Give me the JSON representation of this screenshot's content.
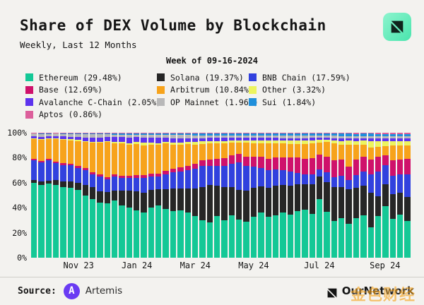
{
  "header": {
    "title": "Share of DEX Volume by Blockchain",
    "subtitle": "Weekly, Last 12 Months",
    "week_label": "Week of 09-16-2024"
  },
  "legend": {
    "columns": [
      [
        {
          "label": "Ethereum (29.48%)",
          "color": "#14C896"
        },
        {
          "label": "Base (12.69%)",
          "color": "#CF116B"
        },
        {
          "label": "Avalanche C-Chain (2.05%)",
          "color": "#5D33EE"
        },
        {
          "label": "Aptos (0.86%)",
          "color": "#DC5F9B"
        }
      ],
      [
        {
          "label": "Solana (19.37%)",
          "color": "#262626"
        },
        {
          "label": "Arbitrum (10.84%)",
          "color": "#F7A31B"
        },
        {
          "label": "OP Mainnet (1.96%)",
          "color": "#B8B8B8"
        }
      ],
      [
        {
          "label": "BNB Chain (17.59%)",
          "color": "#3141DE"
        },
        {
          "label": "Other (3.32%)",
          "color": "#ECF45F"
        },
        {
          "label": "Sui (1.84%)",
          "color": "#1F8FDB"
        }
      ]
    ]
  },
  "footer": {
    "source_label": "Source:",
    "source_logo_letter": "A",
    "source_name": "Artemis",
    "brand": "OurNetwork",
    "watermark": "金色财经"
  },
  "chart_data": {
    "type": "bar",
    "stacked": true,
    "normalized_to_100pct": true,
    "title": "Share of DEX Volume by Blockchain",
    "weeks": 52,
    "x_range_note": "weekly bars from late Sep 2023 to week of 09-16-2024",
    "y_ticks": [
      "0%",
      "20%",
      "40%",
      "60%",
      "80%",
      "100%"
    ],
    "ylim": [
      0,
      100
    ],
    "grid": false,
    "legend_position": "top",
    "x_ticks": [
      {
        "label": "Nov 23",
        "index": 6
      },
      {
        "label": "Jan 24",
        "index": 14
      },
      {
        "label": "Mar 24",
        "index": 22
      },
      {
        "label": "May 24",
        "index": 30
      },
      {
        "label": "Jul 24",
        "index": 39
      },
      {
        "label": "Sep 24",
        "index": 48
      }
    ],
    "series": [
      {
        "name": "Ethereum",
        "color": "#14C896",
        "latest_pct": 29.48,
        "values": [
          60,
          58,
          59.5,
          58,
          57,
          56,
          54,
          50,
          47,
          45,
          44,
          46,
          42,
          40,
          38,
          36,
          40,
          42,
          39,
          37,
          38,
          36,
          33,
          30,
          28,
          33,
          30,
          34,
          31,
          29,
          33,
          36,
          33,
          34,
          36,
          34,
          37,
          38,
          35,
          48,
          38,
          30,
          32,
          28,
          32,
          35,
          25,
          34,
          42,
          32,
          35,
          29.48
        ]
      },
      {
        "name": "Solana",
        "color": "#262626",
        "latest_pct": 19.37,
        "values": [
          2,
          3,
          2.5,
          4,
          4.5,
          5,
          6,
          8,
          10,
          9,
          9,
          8,
          12,
          14,
          15,
          16,
          14,
          13,
          16,
          18,
          17,
          19,
          22,
          26,
          30,
          24,
          26,
          22,
          24,
          25,
          23,
          21,
          23,
          24,
          22,
          23,
          21,
          20,
          24,
          18,
          25,
          28,
          25,
          28,
          25,
          24,
          28,
          16,
          18,
          20,
          18,
          19.37
        ]
      },
      {
        "name": "BNB Chain",
        "color": "#3141DE",
        "latest_pct": 17.59,
        "values": [
          16,
          15,
          16,
          14,
          13,
          13,
          12,
          12,
          10,
          12,
          10,
          11,
          10,
          10,
          11,
          12,
          11,
          10,
          12,
          13,
          14,
          15,
          16,
          17,
          15,
          16,
          17,
          19,
          22,
          20,
          17,
          15,
          14,
          13,
          12,
          11,
          9,
          8,
          8,
          6,
          8,
          8,
          9,
          8,
          10,
          12,
          15,
          20,
          15,
          15,
          15,
          17.59
        ]
      },
      {
        "name": "Base",
        "color": "#CF116B",
        "latest_pct": 12.69,
        "values": [
          1,
          1,
          1.2,
          1,
          1.5,
          1,
          1.5,
          1.5,
          1.5,
          1.5,
          2,
          2,
          2,
          2,
          2,
          2,
          2.5,
          2.5,
          2.5,
          3,
          3,
          3.5,
          4,
          4.5,
          5,
          5.5,
          6,
          6.5,
          7,
          7.5,
          8,
          9,
          9.5,
          10,
          10,
          11,
          12,
          12,
          13,
          12,
          13,
          14,
          13,
          11,
          13,
          12,
          12,
          12,
          8,
          13,
          12,
          12.69
        ]
      },
      {
        "name": "Arbitrum",
        "color": "#F7A31B",
        "latest_pct": 10.84,
        "values": [
          16,
          17,
          16,
          18,
          19,
          19,
          20,
          21,
          24,
          26,
          28,
          25,
          26,
          25,
          25,
          24,
          23,
          23,
          22,
          19,
          18,
          17,
          15,
          13,
          13,
          12,
          12,
          10,
          9,
          11,
          11,
          11,
          12,
          11,
          11,
          11,
          11,
          12,
          12,
          10,
          12,
          14,
          12,
          18,
          12,
          10,
          10,
          8,
          8,
          12,
          12,
          10.84
        ]
      },
      {
        "name": "Other",
        "color": "#ECF45F",
        "latest_pct": 3.32,
        "values": [
          0.6,
          0.6,
          0.6,
          0.6,
          0.6,
          0.7,
          0.7,
          0.7,
          0.8,
          0.8,
          0.8,
          0.9,
          1,
          1.2,
          1.5,
          2,
          1.5,
          1.5,
          1.5,
          1.8,
          2,
          2,
          2,
          2,
          2,
          2,
          2,
          2,
          2,
          2,
          2,
          2,
          2.5,
          2.5,
          2.5,
          2.5,
          2.5,
          2.5,
          2,
          2,
          2,
          2,
          3,
          3,
          3,
          3,
          5,
          5,
          4,
          3.5,
          3.5,
          3.32
        ]
      },
      {
        "name": "Avalanche C-Chain",
        "color": "#5D33EE",
        "latest_pct": 2.05,
        "values": [
          1.6,
          1.8,
          1.6,
          1.6,
          2,
          2.2,
          2.5,
          3,
          3.5,
          3.5,
          3.5,
          4,
          4,
          4.5,
          4,
          4,
          4,
          4,
          3,
          3.5,
          3.5,
          3,
          3,
          2.5,
          2.5,
          2.5,
          2.5,
          2,
          2,
          2,
          2,
          2,
          2,
          2,
          2,
          2,
          2,
          2,
          2,
          1.8,
          1.8,
          2,
          2.2,
          2,
          2,
          2,
          2.2,
          2,
          2,
          2,
          2,
          2.05
        ]
      },
      {
        "name": "OP Mainnet",
        "color": "#B8B8B8",
        "latest_pct": 1.96,
        "values": [
          2,
          2.2,
          2,
          2,
          2,
          2.2,
          2.4,
          2.6,
          2.5,
          2.5,
          2,
          2,
          2,
          2.2,
          2,
          2.5,
          2.5,
          2.5,
          2.5,
          2.5,
          2.5,
          2.5,
          2.5,
          2.5,
          2,
          2,
          2,
          2,
          2,
          2,
          2,
          2,
          2,
          2,
          2,
          2,
          2,
          2,
          2,
          1.8,
          1.8,
          2,
          2,
          2,
          2,
          2,
          2,
          2,
          2,
          2,
          2,
          1.96
        ]
      },
      {
        "name": "Sui",
        "color": "#1F8FDB",
        "latest_pct": 1.84,
        "values": [
          0.5,
          0.6,
          0.5,
          0.5,
          0.6,
          0.6,
          0.6,
          0.8,
          0.8,
          0.8,
          0.8,
          1,
          1,
          1,
          1,
          1,
          1,
          1.2,
          1.2,
          1.2,
          1.2,
          1.2,
          1.4,
          1.4,
          1.4,
          1.4,
          1.4,
          1.4,
          1.5,
          1.5,
          1.5,
          1.5,
          1.5,
          1.5,
          1.5,
          1.5,
          1.5,
          1.5,
          1.5,
          1.5,
          1.5,
          1.6,
          1.8,
          1.8,
          1.8,
          1.8,
          1.8,
          1.8,
          1.8,
          1.8,
          1.8,
          1.84
        ]
      },
      {
        "name": "Aptos",
        "color": "#DC5F9B",
        "latest_pct": 0.86,
        "values": [
          0.3,
          0.3,
          0.3,
          0.3,
          0.3,
          0.3,
          0.3,
          0.4,
          0.4,
          0.4,
          0.4,
          0.4,
          0.5,
          0.5,
          0.5,
          0.5,
          0.5,
          0.5,
          0.5,
          0.5,
          0.5,
          0.5,
          0.6,
          0.6,
          0.6,
          0.6,
          0.6,
          0.6,
          0.6,
          0.6,
          0.7,
          0.7,
          0.7,
          0.7,
          0.7,
          0.7,
          0.7,
          0.7,
          0.7,
          0.7,
          0.7,
          0.8,
          0.8,
          0.8,
          0.8,
          0.8,
          0.8,
          0.8,
          0.8,
          0.9,
          0.9,
          0.86
        ]
      }
    ]
  }
}
